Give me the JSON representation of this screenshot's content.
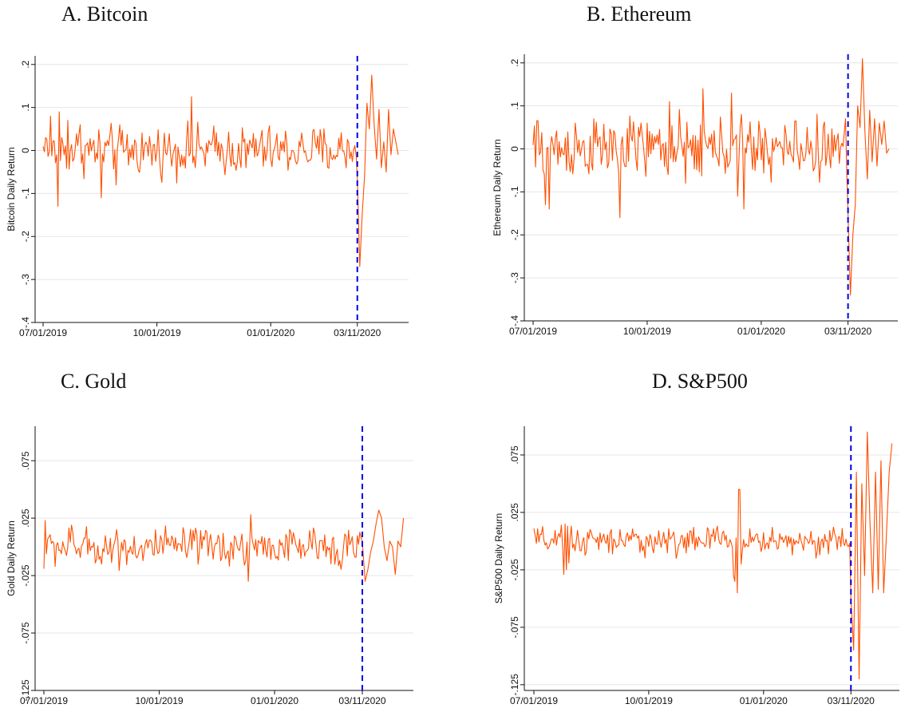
{
  "figure": {
    "series_color": "#ff4f00",
    "event_line_color": "#0000e6",
    "grid_color": "#e6e6e6"
  },
  "chart_data": [
    {
      "id": "bitcoin",
      "type": "line",
      "title": "A.  Bitcoin",
      "ylabel": "Bitcoin Daily Return",
      "xlim": [
        "07/01/2019",
        "04/15/2020"
      ],
      "ylim": [
        -0.4,
        0.22
      ],
      "y_ticks": [
        0.2,
        0.1,
        0,
        -0.1,
        -0.2,
        -0.3,
        -0.4
      ],
      "y_tick_labels": [
        ".2",
        ".1",
        "0",
        "-.1",
        "-.2",
        "-.3",
        "-.4"
      ],
      "x_ticks": [
        "07/01/2019",
        "10/01/2019",
        "01/01/2020",
        "03/11/2020"
      ],
      "x_tick_labels": [
        "07/01/2019",
        "10/01/2019",
        "01/01/2020",
        "03/11/2020"
      ],
      "event_date": "03/11/2020",
      "grid": true,
      "base": 0,
      "vol": 0.028,
      "pre_outliers": [
        [
          2,
          0.03
        ],
        [
          6,
          0.08
        ],
        [
          12,
          -0.13
        ],
        [
          13,
          0.09
        ],
        [
          20,
          0.07
        ],
        [
          30,
          0.06
        ],
        [
          47,
          -0.11
        ],
        [
          59,
          -0.08
        ],
        [
          120,
          0.125
        ],
        [
          123,
          -0.04
        ],
        [
          164,
          -0.04
        ],
        [
          170,
          0.04
        ]
      ],
      "post": [
        -0.06,
        -0.27,
        -0.15,
        -0.06,
        0.11,
        0.05,
        0.175,
        0.06,
        -0.02,
        0.095,
        -0.04,
        0.02,
        -0.05,
        0.095,
        -0.01,
        0.05,
        0.02,
        -0.01
      ]
    },
    {
      "id": "ethereum",
      "type": "line",
      "title": "B. Ethereum",
      "ylabel": "Ethereum Daily Return",
      "xlim": [
        "07/01/2019",
        "04/15/2020"
      ],
      "ylim": [
        -0.4,
        0.22
      ],
      "y_ticks": [
        0.2,
        0.1,
        0,
        -0.1,
        -0.2,
        -0.3,
        -0.4
      ],
      "y_tick_labels": [
        ".2",
        ".1",
        "0",
        "-.1",
        "-.2",
        "-.3",
        "-.4"
      ],
      "x_ticks": [
        "07/01/2019",
        "10/01/2019",
        "01/01/2020",
        "03/11/2020"
      ],
      "x_tick_labels": [
        "07/01/2019",
        "10/01/2019",
        "01/01/2020",
        "03/11/2020"
      ],
      "event_date": "03/11/2020",
      "grid": true,
      "base": 0,
      "vol": 0.035,
      "pre_outliers": [
        [
          4,
          0.065
        ],
        [
          10,
          -0.13
        ],
        [
          13,
          -0.14
        ],
        [
          34,
          0.06
        ],
        [
          49,
          0.07
        ],
        [
          70,
          -0.16
        ],
        [
          85,
          0.05
        ],
        [
          110,
          0.11
        ],
        [
          123,
          -0.08
        ],
        [
          137,
          0.14
        ],
        [
          160,
          0.13
        ],
        [
          165,
          -0.11
        ],
        [
          170,
          -0.14
        ],
        [
          168,
          0.08
        ]
      ],
      "post": [
        -0.15,
        -0.34,
        -0.2,
        -0.13,
        0.1,
        0.05,
        0.21,
        0.04,
        -0.07,
        0.09,
        -0.03,
        0.07,
        -0.04,
        0.06,
        0.01,
        0.065,
        -0.01,
        0.0
      ]
    },
    {
      "id": "gold",
      "type": "line",
      "title": "C. Gold",
      "ylabel": "Gold Daily Return",
      "xlim": [
        "07/01/2019",
        "04/15/2020"
      ],
      "ylim": [
        -0.125,
        0.105
      ],
      "y_ticks": [
        0.075,
        0.025,
        -0.025,
        -0.075,
        -0.125
      ],
      "y_tick_labels": [
        ".075",
        ".025",
        "-.025",
        "-.075",
        "-.125"
      ],
      "x_ticks": [
        "07/01/2019",
        "10/01/2019",
        "01/01/2020",
        "03/11/2020"
      ],
      "x_tick_labels": [
        "07/01/2019",
        "10/01/2019",
        "01/01/2020",
        "03/11/2020"
      ],
      "event_date": "03/11/2020",
      "grid": true,
      "base": 0,
      "vol": 0.008,
      "pre_outliers": [
        [
          0,
          -0.019
        ],
        [
          1,
          0.023
        ],
        [
          22,
          0.019
        ],
        [
          46,
          -0.015
        ],
        [
          58,
          0.015
        ],
        [
          79,
          -0.012
        ],
        [
          160,
          -0.016
        ],
        [
          165,
          0.028
        ],
        [
          167,
          0.002
        ],
        [
          163,
          -0.03
        ]
      ],
      "post": [
        0.005,
        -0.03,
        -0.02,
        -0.005,
        0.005,
        0.02,
        0.032,
        0.025,
        0.0,
        -0.012,
        0.005,
        0.0,
        -0.024,
        0.005,
        0.0,
        0.025
      ]
    },
    {
      "id": "sp500",
      "type": "line",
      "title": "D. S&P500",
      "ylabel": "S&P500 Daily Return",
      "xlim": [
        "07/01/2019",
        "04/15/2020"
      ],
      "ylim": [
        -0.13,
        0.1
      ],
      "y_ticks": [
        0.075,
        0.025,
        -0.025,
        -0.075,
        -0.125
      ],
      "y_tick_labels": [
        ".075",
        ".025",
        "-.025",
        "-.075",
        "-.125"
      ],
      "x_ticks": [
        "07/01/2019",
        "10/01/2019",
        "01/01/2020",
        "03/11/2020"
      ],
      "x_tick_labels": [
        "07/01/2019",
        "10/01/2019",
        "01/01/2020",
        "03/11/2020"
      ],
      "event_date": "03/11/2020",
      "grid": true,
      "base": 0,
      "vol": 0.006,
      "pre_outliers": [
        [
          0,
          0.011
        ],
        [
          24,
          -0.029
        ],
        [
          25,
          0.015
        ],
        [
          26,
          -0.025
        ],
        [
          27,
          0.013
        ],
        [
          28,
          -0.019
        ],
        [
          30,
          0.013
        ],
        [
          45,
          0.01
        ],
        [
          60,
          -0.01
        ],
        [
          147,
          0.013
        ],
        [
          160,
          -0.03
        ],
        [
          161,
          -0.035
        ],
        [
          163,
          -0.045
        ],
        [
          164,
          0.045
        ],
        [
          165,
          0.045
        ],
        [
          166,
          -0.02
        ]
      ],
      "post": [
        -0.05,
        -0.095,
        0.06,
        -0.12,
        0.05,
        -0.03,
        0.095,
        0.015,
        -0.045,
        0.06,
        -0.042,
        0.07,
        -0.045,
        0.005,
        0.06,
        0.085
      ]
    }
  ]
}
